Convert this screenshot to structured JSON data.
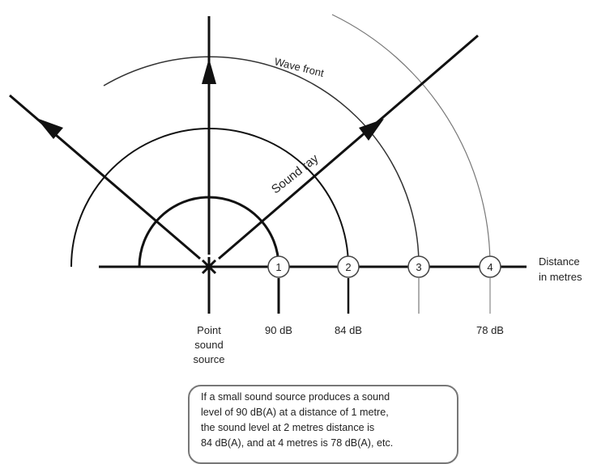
{
  "labels": {
    "wave_front": "Wave front",
    "sound_ray": "Sound ray",
    "distance_line1": "Distance",
    "distance_line2": "in metres",
    "source_line1": "Point",
    "source_line2": "sound",
    "source_line3": "source"
  },
  "distances": [
    {
      "number": "1",
      "level": "90 dB"
    },
    {
      "number": "2",
      "level": "84 dB"
    },
    {
      "number": "3",
      "level": ""
    },
    {
      "number": "4",
      "level": "78 dB"
    }
  ],
  "note": {
    "lines": [
      "If a small sound source produces a sound",
      "level of 90 dB(A) at a distance of 1 metre,",
      "the sound level at 2 metres distance is",
      "84 dB(A), and at 4 metres is 78 dB(A), etc."
    ]
  }
}
